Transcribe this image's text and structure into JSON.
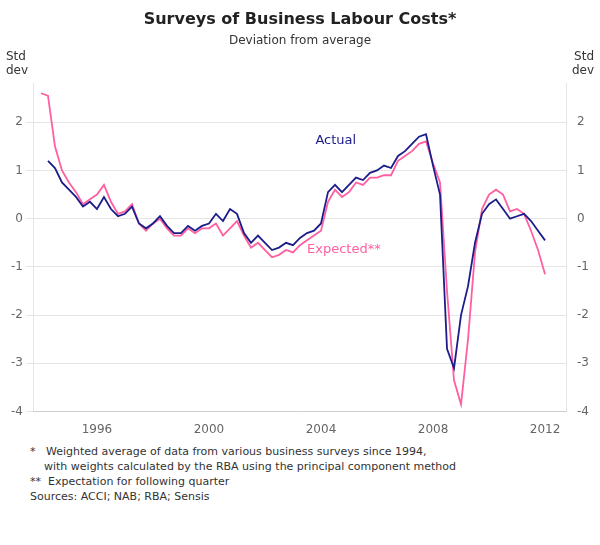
{
  "chart_data": {
    "type": "line",
    "title": "Surveys of Business Labour Costs*",
    "subtitle": "Deviation from average",
    "ylabel": "Std\ndev",
    "y2label": "Std\ndev",
    "xlim": [
      1993.75,
      2012.75
    ],
    "xticks": [
      1996,
      2000,
      2004,
      2008,
      2012
    ],
    "ylim": [
      -4,
      2.8
    ],
    "yticks": [
      -4,
      -3,
      -2,
      -1,
      0,
      1,
      2
    ],
    "y2lim": [
      -4,
      2.8
    ],
    "y2ticks": [
      -4,
      -3,
      -2,
      -1,
      0,
      1,
      2
    ],
    "grid": "y",
    "series": [
      {
        "name": "Expected**",
        "color": "#ff5fa0",
        "x": [
          1994.0,
          1994.25,
          1994.5,
          1994.75,
          1995.0,
          1995.25,
          1995.5,
          1995.75,
          1996.0,
          1996.25,
          1996.5,
          1996.75,
          1997.0,
          1997.25,
          1997.5,
          1997.75,
          1998.0,
          1998.25,
          1998.5,
          1998.75,
          1999.0,
          1999.25,
          1999.5,
          1999.75,
          2000.0,
          2000.25,
          2000.5,
          2000.75,
          2001.0,
          2001.25,
          2001.5,
          2001.75,
          2002.0,
          2002.25,
          2002.5,
          2002.75,
          2003.0,
          2003.25,
          2003.5,
          2003.75,
          2004.0,
          2004.25,
          2004.5,
          2004.75,
          2005.0,
          2005.25,
          2005.5,
          2005.75,
          2006.0,
          2006.25,
          2006.5,
          2006.75,
          2007.0,
          2007.25,
          2007.5,
          2007.75,
          2008.0,
          2008.25,
          2008.5,
          2008.75,
          2009.0,
          2009.25,
          2009.5,
          2009.75,
          2010.0,
          2010.25,
          2010.5,
          2010.75,
          2011.0,
          2011.25,
          2011.5,
          2011.75,
          2012.0
        ],
        "values": [
          2.6,
          2.55,
          1.5,
          1.0,
          0.75,
          0.55,
          0.3,
          0.4,
          0.5,
          0.7,
          0.35,
          0.1,
          0.15,
          0.3,
          -0.1,
          -0.25,
          -0.1,
          0.0,
          -0.2,
          -0.35,
          -0.35,
          -0.2,
          -0.3,
          -0.2,
          -0.2,
          -0.1,
          -0.35,
          -0.2,
          -0.05,
          -0.35,
          -0.6,
          -0.5,
          -0.65,
          -0.8,
          -0.75,
          -0.65,
          -0.7,
          -0.55,
          -0.45,
          -0.35,
          -0.25,
          0.35,
          0.6,
          0.45,
          0.55,
          0.75,
          0.7,
          0.85,
          0.85,
          0.9,
          0.9,
          1.2,
          1.3,
          1.4,
          1.55,
          1.6,
          1.15,
          0.75,
          -1.5,
          -3.35,
          -3.85,
          -2.5,
          -0.7,
          0.2,
          0.5,
          0.6,
          0.5,
          0.15,
          0.2,
          0.1,
          -0.25,
          -0.65,
          -1.15
        ]
      },
      {
        "name": "Actual",
        "color": "#1c1c8a",
        "x": [
          1994.25,
          1994.5,
          1994.75,
          1995.0,
          1995.25,
          1995.5,
          1995.75,
          1996.0,
          1996.25,
          1996.5,
          1996.75,
          1997.0,
          1997.25,
          1997.5,
          1997.75,
          1998.0,
          1998.25,
          1998.5,
          1998.75,
          1999.0,
          1999.25,
          1999.5,
          1999.75,
          2000.0,
          2000.25,
          2000.5,
          2000.75,
          2001.0,
          2001.25,
          2001.5,
          2001.75,
          2002.0,
          2002.25,
          2002.5,
          2002.75,
          2003.0,
          2003.25,
          2003.5,
          2003.75,
          2004.0,
          2004.25,
          2004.5,
          2004.75,
          2005.0,
          2005.25,
          2005.5,
          2005.75,
          2006.0,
          2006.25,
          2006.5,
          2006.75,
          2007.0,
          2007.25,
          2007.5,
          2007.75,
          2008.0,
          2008.25,
          2008.5,
          2008.75,
          2009.0,
          2009.25,
          2009.5,
          2009.75,
          2010.0,
          2010.25,
          2010.5,
          2010.75,
          2011.0,
          2011.25,
          2011.5,
          2011.75,
          2012.0
        ],
        "values": [
          1.2,
          1.05,
          0.75,
          0.6,
          0.45,
          0.25,
          0.35,
          0.2,
          0.45,
          0.2,
          0.05,
          0.1,
          0.25,
          -0.1,
          -0.2,
          -0.1,
          0.05,
          -0.15,
          -0.3,
          -0.3,
          -0.15,
          -0.25,
          -0.15,
          -0.1,
          0.1,
          -0.05,
          0.2,
          0.1,
          -0.3,
          -0.5,
          -0.35,
          -0.5,
          -0.65,
          -0.6,
          -0.5,
          -0.55,
          -0.4,
          -0.3,
          -0.25,
          -0.1,
          0.55,
          0.7,
          0.55,
          0.7,
          0.85,
          0.8,
          0.95,
          1.0,
          1.1,
          1.05,
          1.3,
          1.4,
          1.55,
          1.7,
          1.75,
          1.1,
          0.5,
          -2.7,
          -3.1,
          -2.0,
          -1.4,
          -0.5,
          0.1,
          0.3,
          0.4,
          0.2,
          0.0,
          0.05,
          0.1,
          -0.05,
          -0.25,
          -0.45
        ]
      }
    ],
    "annotations": [
      {
        "text": "Actual",
        "x": 2003.8,
        "y": 1.55,
        "color": "#1c1c8a"
      },
      {
        "text": "Expected**",
        "x": 2003.5,
        "y": -0.72,
        "color": "#ff5fa0"
      }
    ],
    "footnotes": [
      "*   Weighted average of data from various business surveys since 1994,",
      "    with weights calculated by the RBA using the principal component method",
      "**  Expectation for following quarter",
      "Sources: ACCI; NAB; RBA; Sensis"
    ]
  }
}
